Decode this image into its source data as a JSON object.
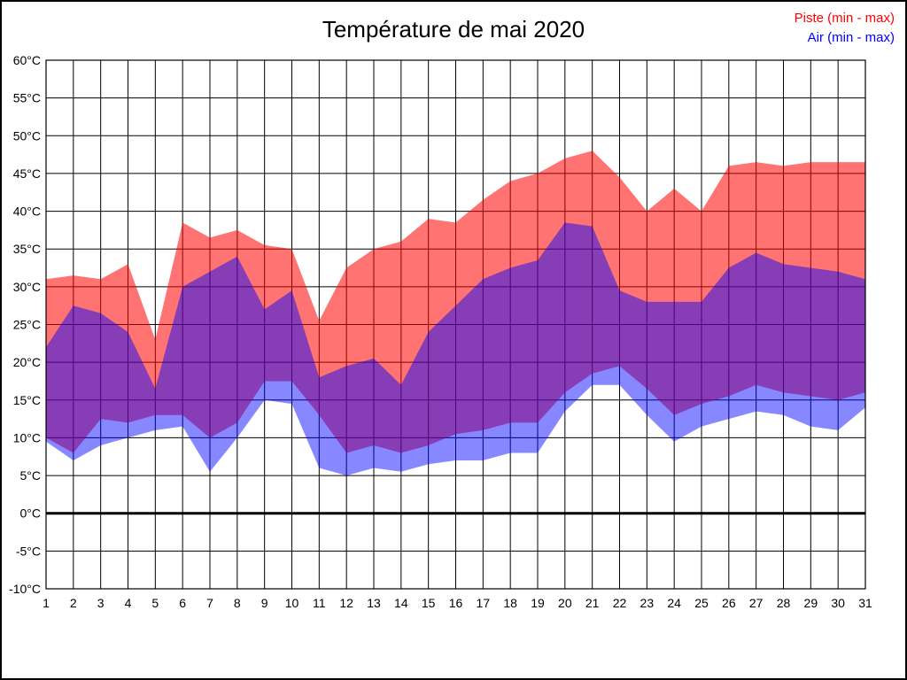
{
  "title": "Température de mai 2020",
  "legend": [
    {
      "label": "Piste (min - max)",
      "color": "#FF0000"
    },
    {
      "label": "Air (min - max)",
      "color": "#0000FF"
    }
  ],
  "colors": {
    "background": "#FFFFFF",
    "frame": "#000000",
    "grid": "#000000",
    "text": "#000000",
    "piste_fill": "rgba(255,0,0,0.55)",
    "air_fill": "rgba(0,0,255,0.47)"
  },
  "chart_data": {
    "type": "area",
    "title": "Température de mai 2020",
    "xlabel": "",
    "ylabel": "",
    "x": [
      1,
      2,
      3,
      4,
      5,
      6,
      7,
      8,
      9,
      10,
      11,
      12,
      13,
      14,
      15,
      16,
      17,
      18,
      19,
      20,
      21,
      22,
      23,
      24,
      25,
      26,
      27,
      28,
      29,
      30,
      31
    ],
    "xticklabels": [
      "1",
      "2",
      "3",
      "4",
      "5",
      "6",
      "7",
      "8",
      "9",
      "10",
      "11",
      "12",
      "13",
      "14",
      "15",
      "16",
      "17",
      "18",
      "19",
      "20",
      "21",
      "22",
      "23",
      "24",
      "25",
      "26",
      "27",
      "28",
      "29",
      "30",
      "31"
    ],
    "ylim": [
      -10,
      60
    ],
    "ystep": 5,
    "yticks": [
      [
        60,
        "60°C"
      ],
      [
        55,
        "55°C"
      ],
      [
        50,
        "50°C"
      ],
      [
        45,
        "45°C"
      ],
      [
        40,
        "40°C"
      ],
      [
        35,
        "35°C"
      ],
      [
        30,
        "30°C"
      ],
      [
        25,
        "25°C"
      ],
      [
        20,
        "20°C"
      ],
      [
        15,
        "15°C"
      ],
      [
        10,
        "10°C"
      ],
      [
        5,
        "5°C"
      ],
      [
        0,
        "0°C"
      ],
      [
        -5,
        "-5°C"
      ],
      [
        -10,
        "-10°C"
      ]
    ],
    "grid": true,
    "zero_line_width": 3,
    "legend_position": "top-right",
    "series": [
      {
        "name": "Piste max",
        "band": "Piste (min - max)",
        "values": [
          31,
          31.5,
          31,
          33,
          23,
          38.5,
          36.5,
          37.5,
          35.5,
          35,
          25.5,
          32.5,
          35,
          36,
          39,
          38.5,
          41.5,
          44,
          45,
          47,
          48,
          44.5,
          40,
          43,
          40,
          46,
          46.5,
          46,
          46.5,
          46.5,
          46.5
        ]
      },
      {
        "name": "Piste min",
        "band": "Piste (min - max)",
        "values": [
          10,
          8,
          12.5,
          12,
          13,
          13,
          10,
          12,
          17.5,
          17.5,
          13,
          8,
          9,
          8,
          9,
          10.5,
          11,
          12,
          12,
          16,
          18.5,
          19.5,
          16.5,
          13,
          14.5,
          15.5,
          17,
          16,
          15.5,
          15,
          16
        ]
      },
      {
        "name": "Air max",
        "band": "Air (min - max)",
        "values": [
          22,
          27.5,
          26.5,
          24,
          16.5,
          30,
          32,
          34,
          27,
          29.5,
          18,
          19.5,
          20.5,
          17,
          24,
          27.5,
          31,
          32.5,
          33.5,
          38.5,
          38,
          29.5,
          28,
          28,
          28,
          32.5,
          34.5,
          33,
          32.5,
          32,
          31
        ]
      },
      {
        "name": "Air min",
        "band": "Air (min - max)",
        "values": [
          9.5,
          7,
          9,
          10,
          11,
          11.5,
          5.5,
          10,
          15,
          14.5,
          6,
          5,
          6,
          5.5,
          6.5,
          7,
          7,
          8,
          8,
          13.5,
          17,
          17,
          13,
          9.5,
          11.5,
          12.5,
          13.5,
          13,
          11.5,
          11,
          14
        ]
      }
    ]
  }
}
